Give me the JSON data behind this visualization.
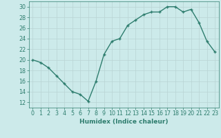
{
  "x": [
    0,
    1,
    2,
    3,
    4,
    5,
    6,
    7,
    8,
    9,
    10,
    11,
    12,
    13,
    14,
    15,
    16,
    17,
    18,
    19,
    20,
    21,
    22,
    23
  ],
  "y": [
    20,
    19.5,
    18.5,
    17,
    15.5,
    14,
    13.5,
    12.2,
    16,
    21,
    23.5,
    24,
    26.5,
    27.5,
    28.5,
    29,
    29,
    30,
    30,
    29,
    29.5,
    27,
    23.5,
    21.5
  ],
  "line_color": "#2e7d6e",
  "bg_color": "#cceaea",
  "grid_color": "#b8d4d4",
  "xlabel": "Humidex (Indice chaleur)",
  "xlim": [
    -0.5,
    23.5
  ],
  "ylim": [
    11,
    31
  ],
  "yticks": [
    12,
    14,
    16,
    18,
    20,
    22,
    24,
    26,
    28,
    30
  ],
  "xticks": [
    0,
    1,
    2,
    3,
    4,
    5,
    6,
    7,
    8,
    9,
    10,
    11,
    12,
    13,
    14,
    15,
    16,
    17,
    18,
    19,
    20,
    21,
    22,
    23
  ],
  "label_fontsize": 6.5,
  "tick_fontsize": 5.8,
  "marker": "+",
  "markersize": 3.5,
  "linewidth": 1.0
}
